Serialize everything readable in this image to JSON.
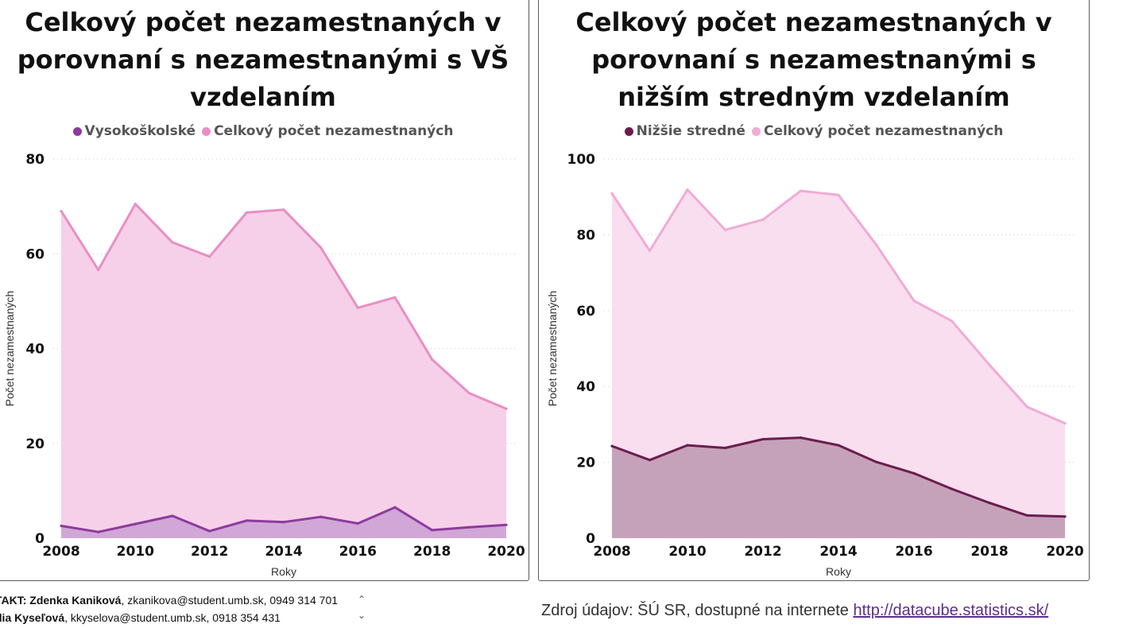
{
  "chart_data": [
    {
      "type": "area",
      "title": "Celkový počet nezamestnaných v porovnaní s nezamestnanými s VŠ vzdelaním",
      "xlabel": "Roky",
      "ylabel": "Počet nezamestnaných",
      "x": [
        2008,
        2009,
        2010,
        2011,
        2012,
        2013,
        2014,
        2015,
        2016,
        2017,
        2018,
        2019,
        2020
      ],
      "xticks": [
        "2008",
        "2010",
        "2012",
        "2014",
        "2016",
        "2018",
        "2020"
      ],
      "yticks": [
        "0",
        "20",
        "40",
        "60",
        "80"
      ],
      "ylim": [
        0,
        80
      ],
      "grid": true,
      "legend_position": "top-center",
      "series": [
        {
          "name": "Vysokoškolské",
          "color": "#8e3a9d",
          "fill": "#d1a7d7",
          "values": [
            2.6,
            1.3,
            3.0,
            4.7,
            1.5,
            3.7,
            3.4,
            4.5,
            3.1,
            6.5,
            1.7,
            2.3,
            2.8
          ]
        },
        {
          "name": "Celkový počet nezamestnaných",
          "color": "#e98ec6",
          "fill": "#f6d0e8",
          "values": [
            69.0,
            56.6,
            70.5,
            62.4,
            59.4,
            68.7,
            69.3,
            61.3,
            48.6,
            50.8,
            37.7,
            30.6,
            27.3
          ]
        }
      ]
    },
    {
      "type": "area",
      "title": "Celkový počet nezamestnaných v porovnaní s nezamestnanými s nižším stredným vzdelaním",
      "xlabel": "Roky",
      "ylabel": "Počet nezamestnaných",
      "x": [
        2008,
        2009,
        2010,
        2011,
        2012,
        2013,
        2014,
        2015,
        2016,
        2017,
        2018,
        2019,
        2020
      ],
      "xticks": [
        "2008",
        "2010",
        "2012",
        "2014",
        "2016",
        "2018",
        "2020"
      ],
      "yticks": [
        "0",
        "20",
        "40",
        "60",
        "80",
        "100"
      ],
      "ylim": [
        0,
        100
      ],
      "grid": true,
      "legend_position": "top-center",
      "series": [
        {
          "name": "Nižšie stredné",
          "color": "#6b1d4f",
          "fill": "#c6a2ba",
          "values": [
            24.3,
            20.6,
            24.5,
            23.8,
            26.1,
            26.5,
            24.5,
            20.1,
            17.1,
            13.0,
            9.3,
            6.0,
            5.7
          ]
        },
        {
          "name": "Celkový počet nezamestnaných",
          "color": "#f2aad6",
          "fill": "#f9deef",
          "values": [
            90.9,
            75.8,
            91.9,
            81.3,
            84.0,
            91.6,
            90.5,
            77.4,
            62.6,
            57.3,
            45.7,
            34.6,
            30.3
          ]
        }
      ]
    }
  ],
  "footer": {
    "contact_name1": "TAKT: Zdenka Kaniková",
    "contact_rest1": ", zkanikova@student.umb.sk, 0949 314 701",
    "contact_name2": "dia Kyseľová",
    "contact_rest2": ", kkyselova@student.umb.sk, 0918 354 431",
    "scroll_up": "⌃",
    "scroll_down": "⌄",
    "source_text": "Zdroj údajov: ŠÚ SR, dostupné na internete ",
    "source_link": "http://datacube.statistics.sk/"
  }
}
